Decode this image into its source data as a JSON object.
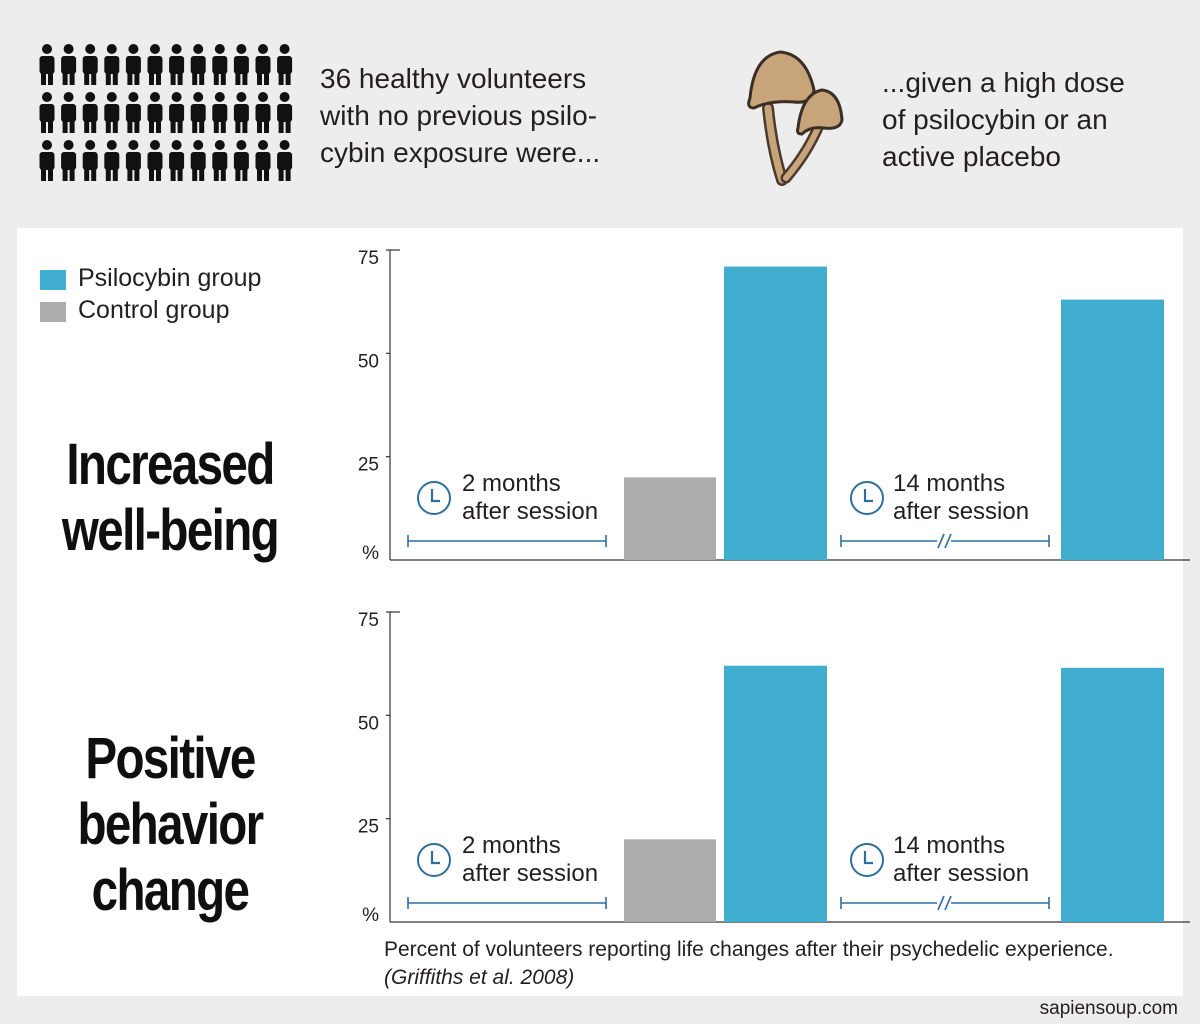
{
  "intro": {
    "line1": "36 healthy volunteers",
    "line2": "with no previous psilo-",
    "line3": "cybin exposure were..."
  },
  "dose": {
    "line1": "...given a high dose",
    "line2": "of psilocybin or an",
    "line3": "active placebo"
  },
  "legend": [
    {
      "label": "Psilocybin group",
      "color": "#42aecf"
    },
    {
      "label": "Control group",
      "color": "#acacac"
    }
  ],
  "rows": [
    {
      "title_line1": "Increased",
      "title_line2": "well-being",
      "title_line3": ""
    },
    {
      "title_line1": "Positive",
      "title_line2": "behavior",
      "title_line3": "change"
    }
  ],
  "timepoints": {
    "t1_line1": "2 months",
    "t1_line2": "after session",
    "t2_line1": "14 months",
    "t2_line2": "after session"
  },
  "caption": {
    "main": "Percent of volunteers reporting life changes after their psychedelic experience.",
    "cite": "(Griffiths et al. 2008)"
  },
  "footer": "sapiensoup.com",
  "icons": {
    "people": "person-icon",
    "mushroom": "mushroom-icon",
    "clock": "clock-icon",
    "axis_break": "axis-break-icon"
  },
  "chart_data": [
    {
      "type": "bar",
      "categories": [
        "2 months after session",
        "14 months after session"
      ],
      "series": [
        {
          "name": "Control group",
          "color": "#acacac",
          "values": [
            20,
            0
          ]
        },
        {
          "name": "Psilocybin group",
          "color": "#42aecf",
          "values": [
            71,
            63
          ]
        }
      ],
      "ylim": [
        0,
        75
      ],
      "yticks": [
        "%",
        "25",
        "50",
        "75"
      ],
      "title": "Increased well-being"
    },
    {
      "type": "bar",
      "categories": [
        "2 months after session",
        "14 months after session"
      ],
      "series": [
        {
          "name": "Control group",
          "color": "#acacac",
          "values": [
            20,
            0
          ]
        },
        {
          "name": "Psilocybin group",
          "color": "#42aecf",
          "values": [
            62,
            61.5
          ]
        }
      ],
      "ylim": [
        0,
        75
      ],
      "yticks": [
        "%",
        "25",
        "50",
        "75"
      ],
      "title": "Positive behavior change"
    }
  ]
}
